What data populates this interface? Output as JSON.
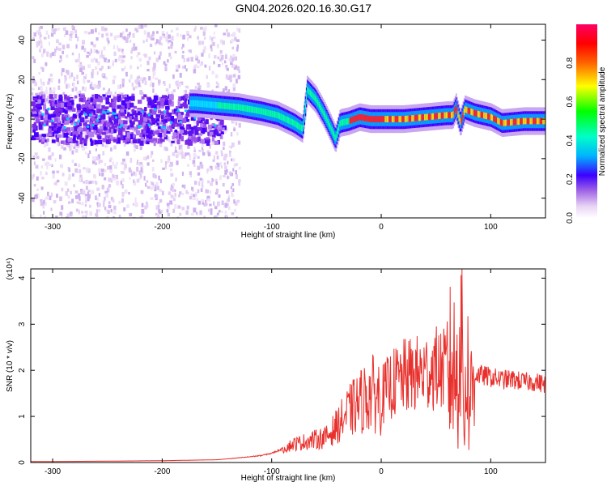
{
  "title": "GN04.2026.020.16.30.G17",
  "chart_data": [
    {
      "type": "heatmap",
      "xlabel": "Height of straight line (km)",
      "ylabel": "Frequency (Hz)",
      "xlim": [
        -320,
        150
      ],
      "ylim": [
        -50,
        48
      ],
      "xticks": [
        -300,
        -200,
        -100,
        0,
        100
      ],
      "yticks": [
        -40,
        -20,
        0,
        20,
        40
      ],
      "colorbar": {
        "label": "Normalized spectral amplitude",
        "range": [
          0,
          1
        ],
        "ticks": [
          0.0,
          0.2,
          0.4,
          0.6,
          0.8
        ]
      },
      "ridge": {
        "x": [
          -170,
          -150,
          -130,
          -110,
          -95,
          -80,
          -72,
          -68,
          -60,
          -52,
          -46,
          -42,
          -38,
          -30,
          -20,
          -10,
          0,
          20,
          40,
          60,
          65,
          68,
          72,
          76,
          85,
          100,
          110,
          130,
          150
        ],
        "y": [
          8,
          7,
          6,
          4,
          2,
          -2,
          -5,
          15,
          10,
          2,
          -5,
          -10,
          -2,
          -1,
          1,
          0,
          0,
          0,
          1,
          2,
          2,
          6,
          -2,
          5,
          3,
          1,
          -2,
          -1,
          -1
        ]
      }
    },
    {
      "type": "line",
      "xlabel": "Height of straight line (km)",
      "ylabel": "SNR (10 * v/v)",
      "y_multiplier": "(x10⁴)",
      "xlim": [
        -320,
        150
      ],
      "ylim": [
        0,
        4.2
      ],
      "xticks": [
        -300,
        -200,
        -100,
        0,
        100
      ],
      "yticks": [
        0,
        1,
        2,
        3,
        4
      ],
      "x": [
        -320,
        -250,
        -200,
        -150,
        -130,
        -110,
        -100,
        -90,
        -80,
        -70,
        -60,
        -50,
        -40,
        -30,
        -20,
        -10,
        0,
        10,
        20,
        30,
        40,
        50,
        60,
        65,
        70,
        72,
        74,
        76,
        78,
        80,
        85,
        90,
        100,
        110,
        120,
        130,
        140,
        150
      ],
      "y": [
        0.02,
        0.03,
        0.04,
        0.06,
        0.1,
        0.15,
        0.2,
        0.3,
        0.4,
        0.45,
        0.5,
        0.55,
        0.8,
        1.1,
        1.3,
        1.5,
        1.45,
        1.7,
        1.85,
        1.9,
        1.95,
        2.05,
        2.0,
        2.1,
        1.8,
        3.5,
        2.4,
        0.6,
        2.8,
        1.2,
        1.9,
        1.9,
        1.85,
        1.8,
        1.8,
        1.75,
        1.75,
        1.7
      ]
    }
  ]
}
